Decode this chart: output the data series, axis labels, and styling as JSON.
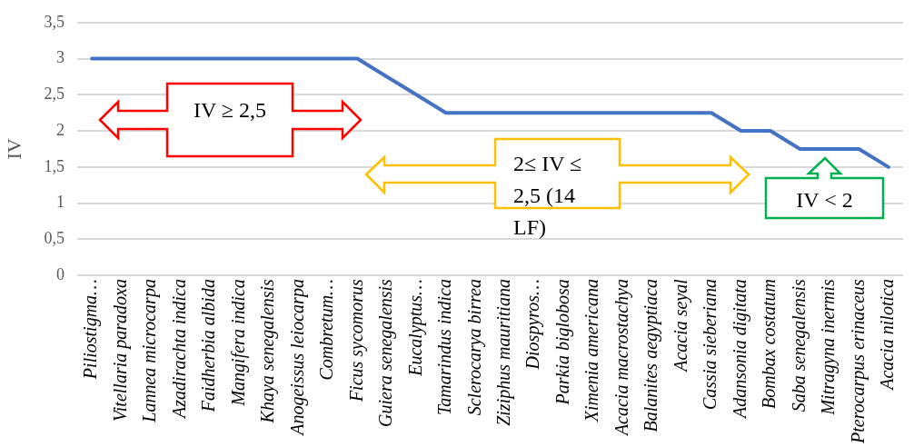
{
  "chart_data": {
    "type": "line",
    "ylabel": "IV",
    "categories": [
      "Piliostigma…",
      "Vitellaria paradoxa",
      "Lannea microcarpa",
      "Azadirachta indica",
      "Faidherbia albida",
      "Mangifera indica",
      "Khaya senegalensis",
      "Anogeissus leiocarpa",
      "Combretum…",
      "Ficus sycomorus",
      "Guiera senegalensis",
      "Eucalyptus…",
      "Tamarindus indica",
      "Sclerocarya birrea",
      "Ziziphus mauritiana",
      "Diospyros…",
      "Parkia biglobosa",
      "Ximenia americana",
      "Acacia macrostachya",
      "Balanites aegyptiaca",
      "Acacia seyal",
      "Cassia sieberiana",
      "Adansonia digitata",
      "Bombax costatum",
      "Saba senegalensis",
      "Mitragyna inermis",
      "Pterocarpus erinaceus",
      "Acacia nilotica"
    ],
    "series": [
      {
        "color": "#4472c4",
        "values": [
          3,
          3,
          3,
          3,
          3,
          3,
          3,
          3,
          3,
          3,
          2.75,
          2.5,
          2.25,
          2.25,
          2.25,
          2.25,
          2.25,
          2.25,
          2.25,
          2.25,
          2.25,
          2.25,
          2,
          2,
          1.75,
          1.75,
          1.75,
          1.5
        ]
      }
    ],
    "ylim": [
      0,
      3.5
    ],
    "yticks": [
      {
        "value": 0,
        "label": "0"
      },
      {
        "value": 0.5,
        "label": "0,5"
      },
      {
        "value": 1,
        "label": "1"
      },
      {
        "value": 1.5,
        "label": "1,5"
      },
      {
        "value": 2,
        "label": "2"
      },
      {
        "value": 2.5,
        "label": "2,5"
      },
      {
        "value": 3,
        "label": "3"
      },
      {
        "value": 3.5,
        "label": "3,5"
      }
    ],
    "grid": "y",
    "legend": false,
    "marker": "none",
    "line_style": "solid",
    "annotations": [
      "IV ≥ 2,5",
      "2≤ IV ≤ 2,5 (14 LF)",
      "IV < 2"
    ]
  }
}
